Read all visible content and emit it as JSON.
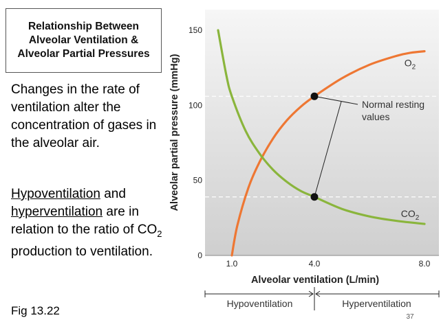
{
  "slide": {
    "title": "Relationship Between Alveolar Ventilation & Alveolar Partial Pressures",
    "para1": "Changes in the rate of ventilation alter the concentration of gases in the alveolar air.",
    "para2": {
      "word1": "Hypoventilation",
      "mid": " and ",
      "word2": "hyperventilation",
      "rest1": " are in relation to the ratio of CO",
      "sub": "2",
      "rest2": " production to ventilation."
    },
    "fig_label": "Fig 13.22",
    "page_number": "37"
  },
  "chart_data": {
    "type": "line",
    "xlabel": "Alveolar ventilation (L/min)",
    "ylabel": "Alveolar partial pressure (mmHg)",
    "x_ticks": [
      "1.0",
      "4.0",
      "8.0"
    ],
    "y_ticks": [
      "0",
      "50",
      "100",
      "150"
    ],
    "ylim": [
      0,
      150
    ],
    "series": [
      {
        "name": "O",
        "name_sub": "2",
        "color": "#ee7733",
        "points": [
          [
            1.0,
            0
          ],
          [
            1.2,
            20
          ],
          [
            1.6,
            45
          ],
          [
            2.0,
            62
          ],
          [
            2.5,
            78
          ],
          [
            3.0,
            90
          ],
          [
            3.5,
            99
          ],
          [
            4.0,
            106
          ],
          [
            5.0,
            118
          ],
          [
            6.0,
            127
          ],
          [
            7.0,
            133
          ],
          [
            7.5,
            135
          ],
          [
            8.0,
            136
          ]
        ]
      },
      {
        "name": "CO",
        "name_sub": "2",
        "color": "#8ab53c",
        "points": [
          [
            0.5,
            150
          ],
          [
            0.8,
            120
          ],
          [
            1.0,
            106
          ],
          [
            1.5,
            83
          ],
          [
            2.0,
            68
          ],
          [
            2.5,
            57
          ],
          [
            3.0,
            49
          ],
          [
            3.5,
            43
          ],
          [
            4.0,
            39
          ],
          [
            5.0,
            31
          ],
          [
            6.0,
            26
          ],
          [
            7.0,
            23
          ],
          [
            8.0,
            21
          ]
        ]
      }
    ],
    "reference_lines": [
      106,
      39
    ],
    "normal_points": [
      [
        4.0,
        106
      ],
      [
        4.0,
        39
      ]
    ],
    "annotation": {
      "line1": "Normal resting",
      "line2": "values"
    },
    "regions": {
      "left": "Hypoventilation",
      "right": "Hyperventilation"
    },
    "divider_x": 4.0
  }
}
